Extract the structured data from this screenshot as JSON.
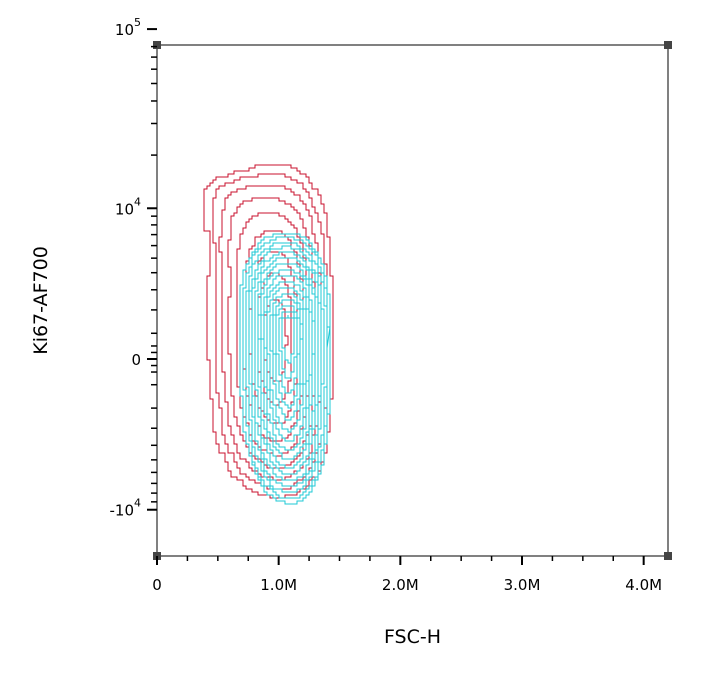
{
  "chart_data": {
    "type": "contour",
    "xlabel": "FSC-H",
    "ylabel": "Ki67-AF700",
    "x_scale": "linear",
    "y_scale": "biexponential",
    "xlim": [
      0,
      4200000
    ],
    "ylim": [
      -15000,
      120000
    ],
    "x_ticks": [
      {
        "value": 0,
        "label": "0"
      },
      {
        "value": 1000000,
        "label": "1.0M"
      },
      {
        "value": 2000000,
        "label": "2.0M"
      },
      {
        "value": 3000000,
        "label": "3.0M"
      },
      {
        "value": 4000000,
        "label": "4.0M"
      }
    ],
    "y_ticks": [
      {
        "value": 100000,
        "base": "10",
        "exp": "5"
      },
      {
        "value": 10000,
        "base": "10",
        "exp": "4"
      },
      {
        "value": 0,
        "base": "0",
        "exp": ""
      },
      {
        "value": -10000,
        "base": "-10",
        "exp": "4"
      }
    ],
    "grid": false,
    "series": [
      {
        "color": "#c8102e",
        "center": {
          "x": 980000,
          "y": 800
        },
        "extent_x": [
          420000,
          1450000
        ],
        "extent_y": [
          -8500,
          18000
        ],
        "shoulder": {
          "x": 620000,
          "y": 15000
        },
        "levels": 9
      },
      {
        "color": "#1ec8d6",
        "center": {
          "x": 1080000,
          "y": 1300
        },
        "extent_x": [
          680000,
          1430000
        ],
        "extent_y": [
          -9200,
          7200
        ],
        "levels": 16
      }
    ]
  }
}
